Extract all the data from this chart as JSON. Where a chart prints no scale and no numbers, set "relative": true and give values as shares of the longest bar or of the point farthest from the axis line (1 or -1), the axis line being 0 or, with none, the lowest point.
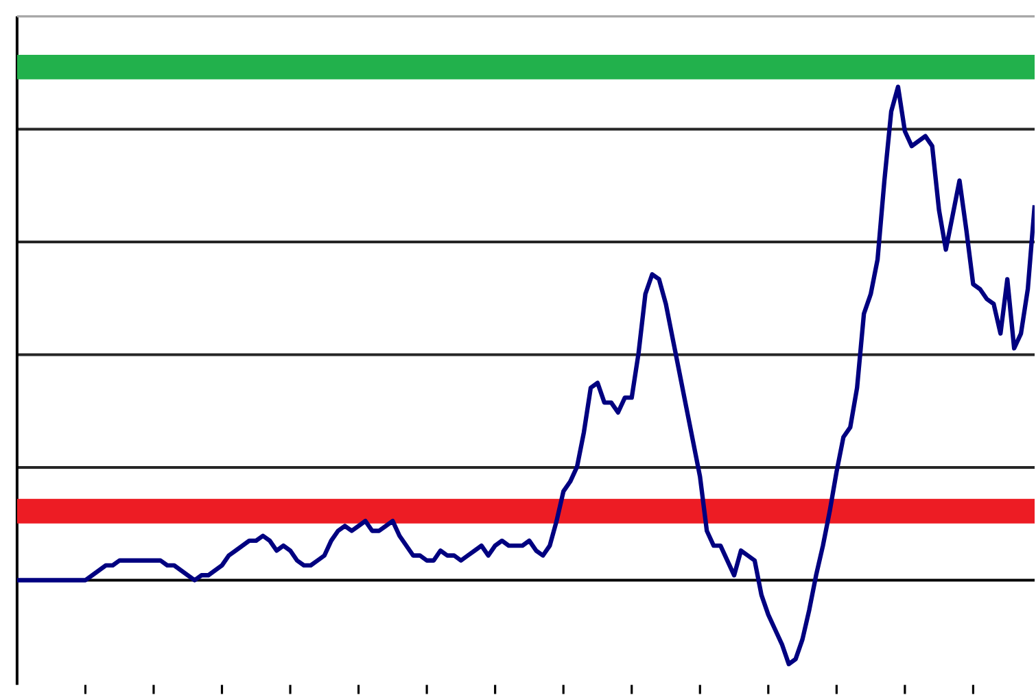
{
  "chart_data": {
    "type": "line",
    "relative": true,
    "grid": "y",
    "categories": [
      null,
      null,
      null,
      null,
      null,
      null,
      null,
      null,
      null,
      null,
      null,
      null,
      null,
      null,
      null,
      null,
      null,
      null,
      null,
      null,
      null,
      null,
      null,
      null,
      null,
      null,
      null,
      null,
      null,
      null,
      null,
      null,
      null,
      null,
      null,
      null,
      null,
      null,
      null,
      null,
      null,
      null,
      null,
      null,
      null,
      null,
      null,
      null,
      null,
      null,
      null,
      null,
      null,
      null,
      null,
      null,
      null,
      null,
      null,
      null,
      null,
      null,
      null,
      null,
      null,
      null,
      null,
      null,
      null,
      null,
      null,
      null,
      null,
      null,
      null,
      null,
      null,
      null,
      null,
      null,
      null,
      null,
      null,
      null,
      null,
      null,
      null,
      null,
      null,
      null,
      null,
      null,
      null,
      null,
      null,
      null,
      null,
      null,
      null,
      null,
      null,
      null,
      null,
      null,
      null,
      null,
      null,
      null,
      null,
      null,
      null,
      null,
      null,
      null,
      null,
      null,
      null,
      null,
      null,
      null,
      null,
      null,
      null,
      null,
      null,
      null,
      null,
      null,
      null,
      null,
      null,
      null,
      null,
      null,
      null,
      null,
      null,
      null,
      null,
      null,
      null,
      null,
      null,
      null,
      null,
      null,
      null,
      null,
      null,
      null
    ],
    "ref_lines": [
      {
        "axis": "y",
        "value": 1.04,
        "color": "#22b14c"
      },
      {
        "axis": "y",
        "value": 0.14,
        "color": "#ed1c24"
      }
    ],
    "series": [
      {
        "color": "#000080",
        "values": [
          0,
          0,
          0,
          0,
          0,
          0,
          0,
          0,
          0,
          0,
          0,
          0.01,
          0.02,
          0.03,
          0.03,
          0.04,
          0.04,
          0.04,
          0.04,
          0.04,
          0.04,
          0.04,
          0.03,
          0.03,
          0.02,
          0.01,
          0,
          0.01,
          0.01,
          0.02,
          0.03,
          0.05,
          0.06,
          0.07,
          0.08,
          0.08,
          0.09,
          0.08,
          0.06,
          0.07,
          0.06,
          0.04,
          0.03,
          0.03,
          0.04,
          0.05,
          0.08,
          0.1,
          0.11,
          0.1,
          0.11,
          0.12,
          0.1,
          0.1,
          0.11,
          0.12,
          0.09,
          0.07,
          0.05,
          0.05,
          0.04,
          0.04,
          0.06,
          0.05,
          0.05,
          0.04,
          0.05,
          0.06,
          0.07,
          0.05,
          0.07,
          0.08,
          0.07,
          0.07,
          0.07,
          0.08,
          0.06,
          0.05,
          0.07,
          0.12,
          0.18,
          0.2,
          0.23,
          0.3,
          0.39,
          0.4,
          0.36,
          0.36,
          0.34,
          0.37,
          0.37,
          0.46,
          0.58,
          0.62,
          0.61,
          0.56,
          0.49,
          0.42,
          0.35,
          0.28,
          0.21,
          0.1,
          0.07,
          0.07,
          0.04,
          0.01,
          0.06,
          0.05,
          0.04,
          -0.03,
          -0.07,
          -0.1,
          -0.13,
          -0.17,
          -0.16,
          -0.12,
          -0.06,
          0.01,
          0.07,
          0.14,
          0.22,
          0.29,
          0.31,
          0.39,
          0.54,
          0.58,
          0.65,
          0.81,
          0.95,
          1,
          0.91,
          0.88,
          0.89,
          0.9,
          0.88,
          0.75,
          0.67,
          0.74,
          0.81,
          0.71,
          0.6,
          0.59,
          0.57,
          0.56,
          0.5,
          0.61,
          0.47,
          0.5,
          0.59,
          0.76
        ]
      }
    ]
  }
}
